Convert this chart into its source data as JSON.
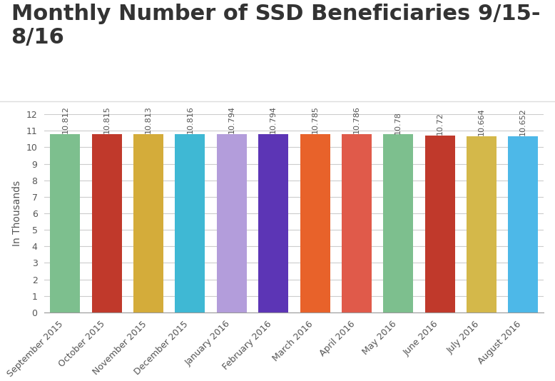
{
  "title": "Monthly Number of SSD Beneficiaries 9/15-\n8/16",
  "ylabel": "In Thousands",
  "categories": [
    "September 2015",
    "October 2015",
    "November 2015",
    "December 2015",
    "January 2016",
    "February 2016",
    "March 2016",
    "April 2016",
    "May 2016",
    "June 2016",
    "July 2016",
    "August 2016"
  ],
  "values": [
    10.812,
    10.815,
    10.813,
    10.816,
    10.794,
    10.794,
    10.785,
    10.786,
    10.78,
    10.72,
    10.664,
    10.652
  ],
  "bar_colors": [
    "#7dbf8e",
    "#c0392b",
    "#d4ac3a",
    "#3fb8d4",
    "#b39ddb",
    "#5c35b5",
    "#e8622a",
    "#e05a4a",
    "#7dbf8e",
    "#c0392b",
    "#d4b84a",
    "#4db8e8"
  ],
  "ylim": [
    0,
    12
  ],
  "yticks": [
    0,
    1,
    2,
    3,
    4,
    5,
    6,
    7,
    8,
    9,
    10,
    11,
    12
  ],
  "title_fontsize": 22,
  "title_color": "#333333",
  "label_fontsize": 9,
  "value_fontsize": 8,
  "background_color": "#ffffff",
  "grid_color": "#cccccc",
  "bar_width": 0.72
}
